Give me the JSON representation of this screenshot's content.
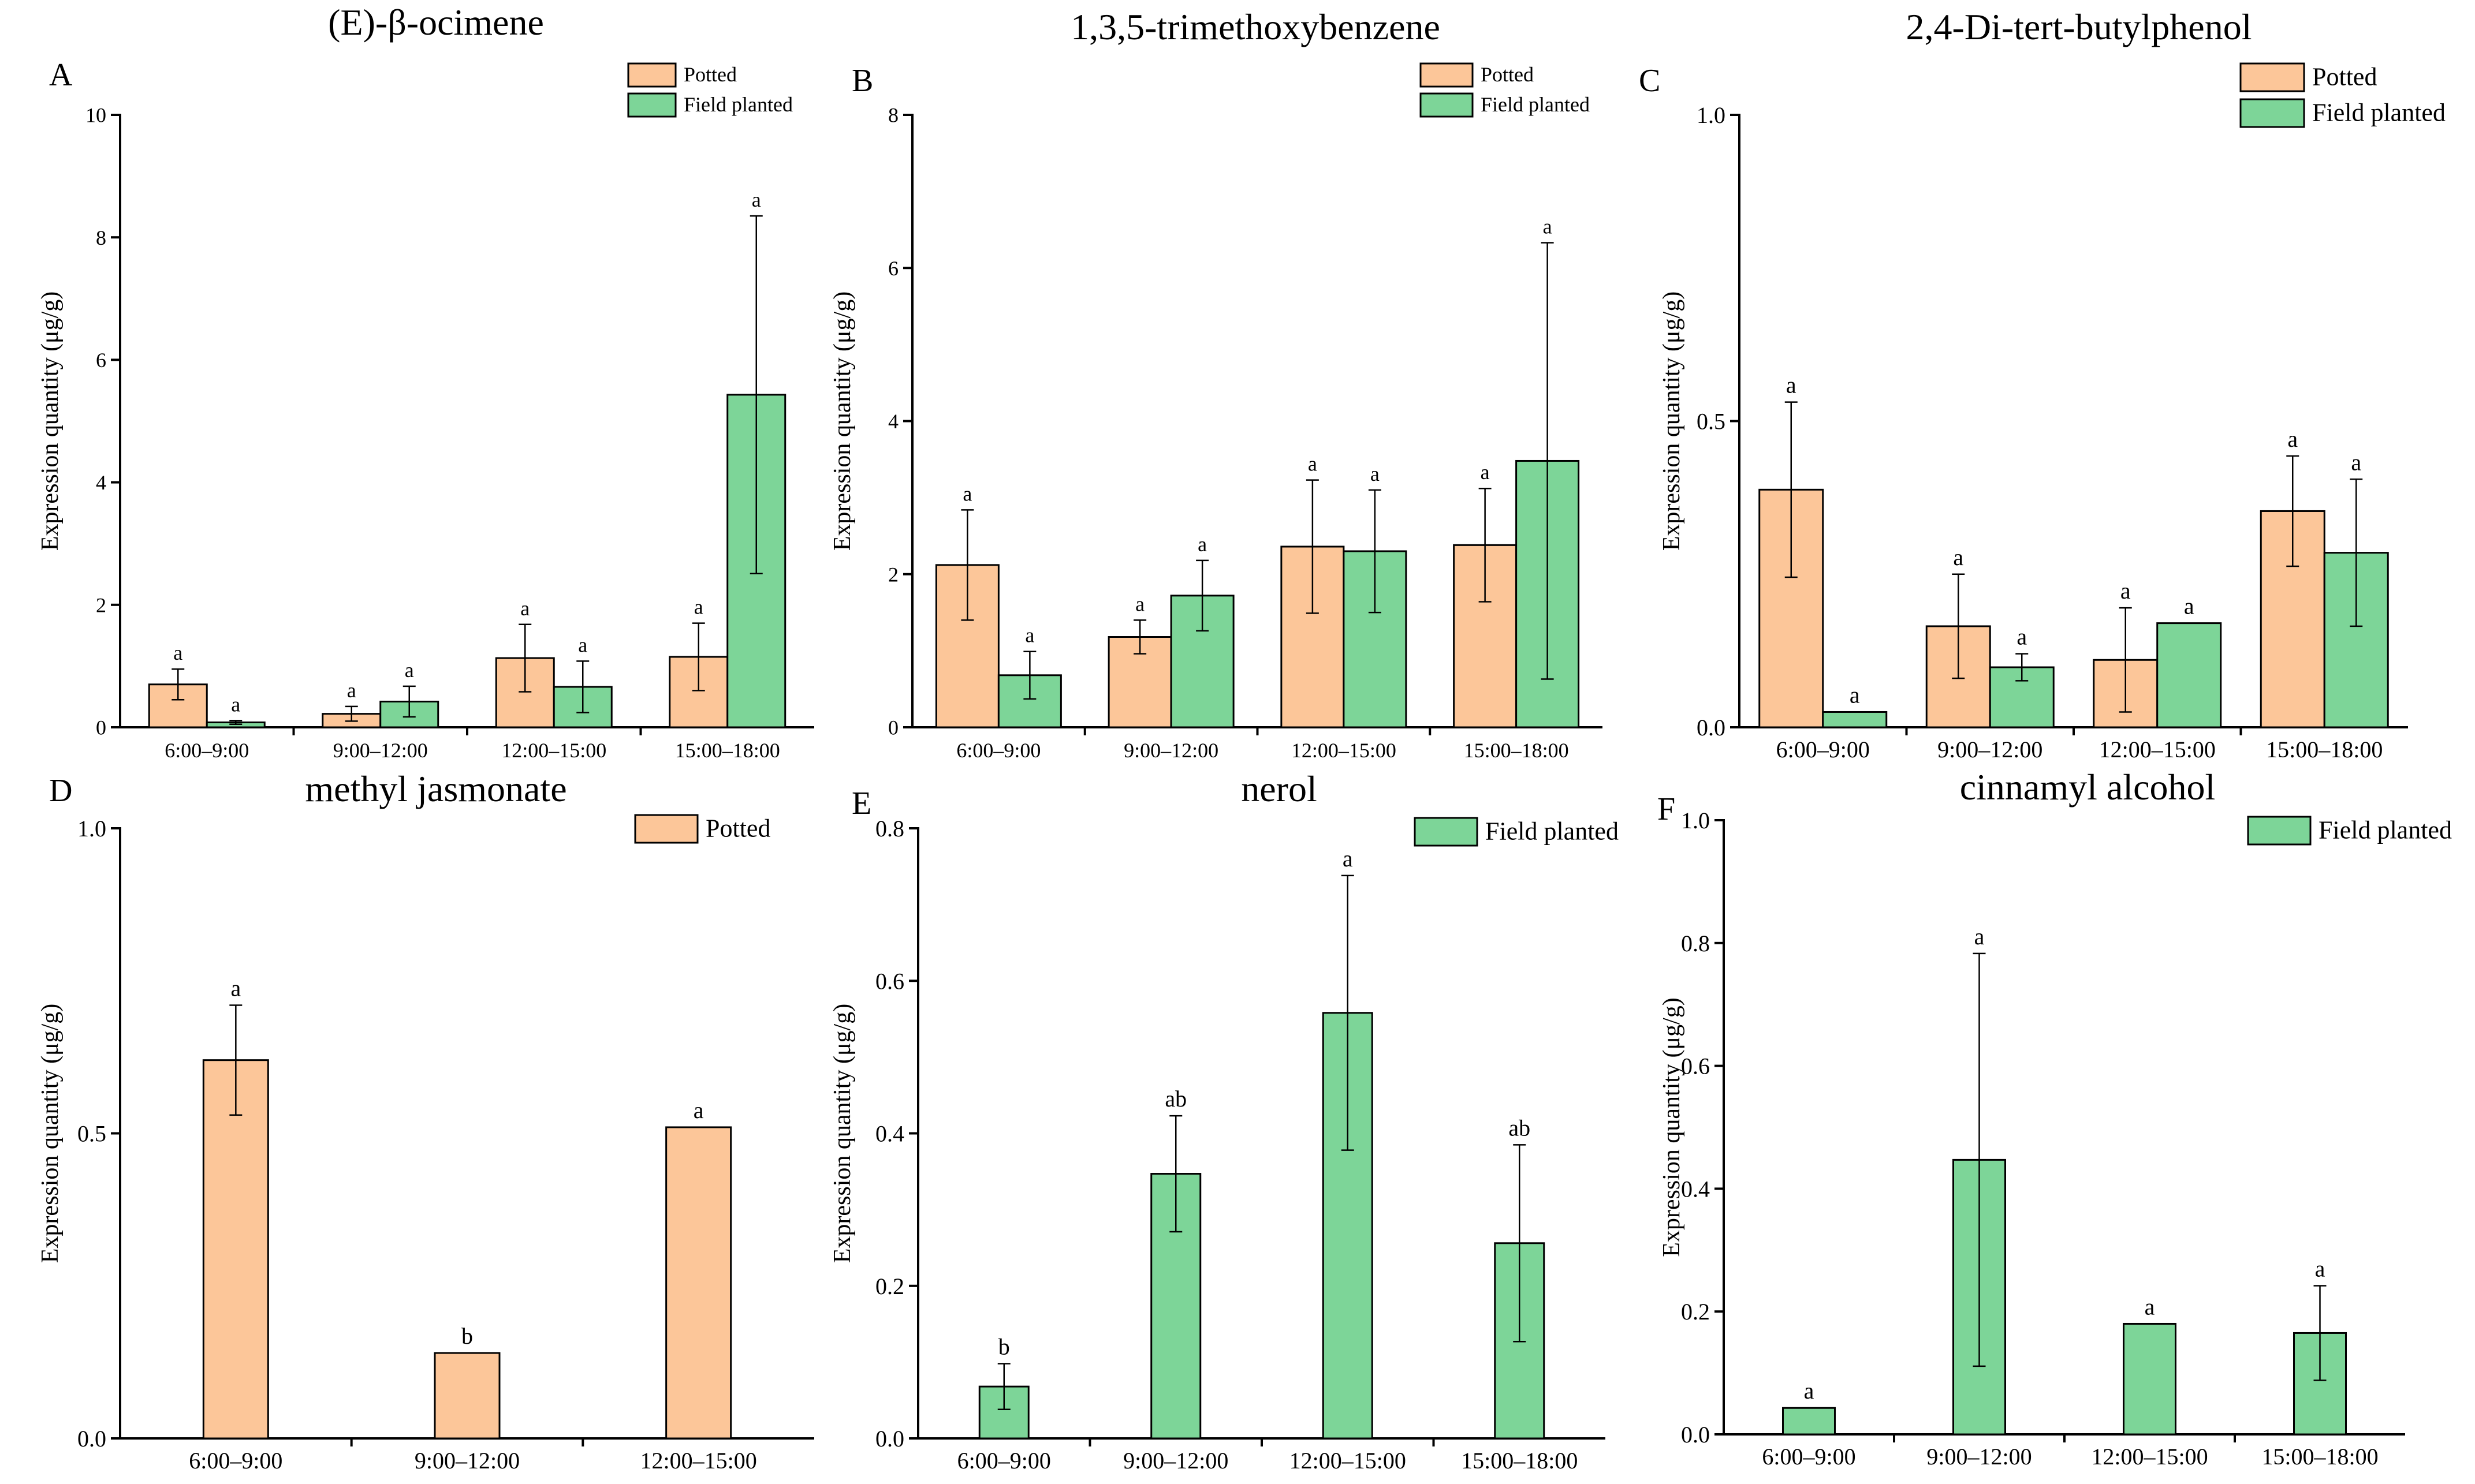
{
  "colors": {
    "potted": "#FCC699",
    "field_planted": "#7DD598"
  },
  "series_names": {
    "potted": "Potted",
    "field_planted": "Field planted"
  },
  "chart_data": [
    {
      "panel_label": "A",
      "title": "(E)-β-ocimene",
      "type": "bar",
      "ylabel": "Expression quantity (μg/g)",
      "ylim": [
        0,
        10
      ],
      "yticks": [
        "0",
        "2",
        "4",
        "6",
        "8",
        "10"
      ],
      "ytick_values": [
        0,
        2,
        4,
        6,
        8,
        10
      ],
      "categories": [
        "6:00–9:00",
        "9:00–12:00",
        "12:00–15:00",
        "15:00–18:00"
      ],
      "legend": [
        "Potted",
        "Field planted"
      ],
      "series": [
        {
          "name": "Potted",
          "key": "potted",
          "values": [
            0.7,
            0.22,
            1.13,
            1.15
          ],
          "errors": [
            0.25,
            0.12,
            0.55,
            0.55
          ],
          "labels": [
            "a",
            "a",
            "a",
            "a"
          ]
        },
        {
          "name": "Field planted",
          "key": "field_planted",
          "values": [
            0.08,
            0.42,
            0.66,
            5.43
          ],
          "errors": [
            0.03,
            0.25,
            0.42,
            2.92
          ],
          "labels": [
            "a",
            "a",
            "a",
            "a"
          ]
        }
      ]
    },
    {
      "panel_label": "B",
      "title": "1,3,5-trimethoxybenzene",
      "type": "bar",
      "ylabel": "Expression quantity (μg/g)",
      "ylim": [
        0,
        8
      ],
      "yticks": [
        "0",
        "2",
        "4",
        "6",
        "8"
      ],
      "ytick_values": [
        0,
        2,
        4,
        6,
        8
      ],
      "categories": [
        "6:00–9:00",
        "9:00–12:00",
        "12:00–15:00",
        "15:00–18:00"
      ],
      "legend": [
        "Potted",
        "Field planted"
      ],
      "series": [
        {
          "name": "Potted",
          "key": "potted",
          "values": [
            2.12,
            1.18,
            2.36,
            2.38
          ],
          "errors": [
            0.72,
            0.22,
            0.87,
            0.74
          ],
          "labels": [
            "a",
            "a",
            "a",
            "a"
          ]
        },
        {
          "name": "Field planted",
          "key": "field_planted",
          "values": [
            0.68,
            1.72,
            2.3,
            3.48
          ],
          "errors": [
            0.31,
            0.46,
            0.8,
            2.85
          ],
          "labels": [
            "a",
            "a",
            "a",
            "a"
          ]
        }
      ]
    },
    {
      "panel_label": "C",
      "title": "2,4-Di-tert-butylphenol",
      "type": "bar",
      "ylabel": "Expression quantity (μg/g)",
      "ylim": [
        0,
        1.0
      ],
      "yticks": [
        "0.0",
        "0.5",
        "1.0"
      ],
      "ytick_values": [
        0,
        0.5,
        1.0
      ],
      "categories": [
        "6:00–9:00",
        "9:00–12:00",
        "12:00–15:00",
        "15:00–18:00"
      ],
      "legend": [
        "Potted",
        "Field planted"
      ],
      "series": [
        {
          "name": "Potted",
          "key": "potted",
          "values": [
            0.388,
            0.165,
            0.11,
            0.353
          ],
          "errors": [
            0.143,
            0.085,
            0.085,
            0.09
          ],
          "labels": [
            "a",
            "a",
            "a",
            "a"
          ]
        },
        {
          "name": "Field planted",
          "key": "field_planted",
          "values": [
            0.025,
            0.098,
            0.17,
            0.285
          ],
          "errors": [
            0,
            0.022,
            0,
            0.12
          ],
          "labels": [
            "a",
            "a",
            "a",
            "a"
          ]
        }
      ]
    },
    {
      "panel_label": "D",
      "title": "methyl jasmonate",
      "type": "bar",
      "ylabel": "Expression quantity (μg/g)",
      "ylim": [
        0,
        1.0
      ],
      "yticks": [
        "0.0",
        "0.5",
        "1.0"
      ],
      "ytick_values": [
        0,
        0.5,
        1.0
      ],
      "categories": [
        "6:00–9:00",
        "9:00–12:00",
        "12:00–15:00"
      ],
      "legend": [
        "Potted"
      ],
      "series": [
        {
          "name": "Potted",
          "key": "potted",
          "values": [
            0.62,
            0.14,
            0.51
          ],
          "errors": [
            0.09,
            0,
            0
          ],
          "labels": [
            "a",
            "b",
            "a"
          ]
        }
      ]
    },
    {
      "panel_label": "E",
      "title": "nerol",
      "type": "bar",
      "ylabel": "Expression quantity (μg/g)",
      "ylim": [
        0,
        0.8
      ],
      "yticks": [
        "0.0",
        "0.2",
        "0.4",
        "0.6",
        "0.8"
      ],
      "ytick_values": [
        0,
        0.2,
        0.4,
        0.6,
        0.8
      ],
      "categories": [
        "6:00–9:00",
        "9:00–12:00",
        "12:00–15:00",
        "15:00–18:00"
      ],
      "legend": [
        "Field planted"
      ],
      "series": [
        {
          "name": "Field planted",
          "key": "field_planted",
          "values": [
            0.068,
            0.347,
            0.558,
            0.256
          ],
          "errors": [
            0.03,
            0.076,
            0.18,
            0.129
          ],
          "labels": [
            "b",
            "ab",
            "a",
            "ab"
          ]
        }
      ]
    },
    {
      "panel_label": "F",
      "title": "cinnamyl alcohol",
      "type": "bar",
      "ylabel": "Expression quantity (μg/g)",
      "ylim": [
        0,
        1.0
      ],
      "yticks": [
        "0.0",
        "0.2",
        "0.4",
        "0.6",
        "0.8",
        "1.0"
      ],
      "ytick_values": [
        0,
        0.2,
        0.4,
        0.6,
        0.8,
        1.0
      ],
      "categories": [
        "6:00–9:00",
        "9:00–12:00",
        "12:00–15:00",
        "15:00–18:00"
      ],
      "legend": [
        "Field planted"
      ],
      "series": [
        {
          "name": "Field planted",
          "key": "field_planted",
          "values": [
            0.043,
            0.447,
            0.18,
            0.165
          ],
          "errors": [
            0,
            0.336,
            0,
            0.077
          ],
          "labels": [
            "a",
            "a",
            "a",
            "a"
          ]
        }
      ]
    }
  ]
}
